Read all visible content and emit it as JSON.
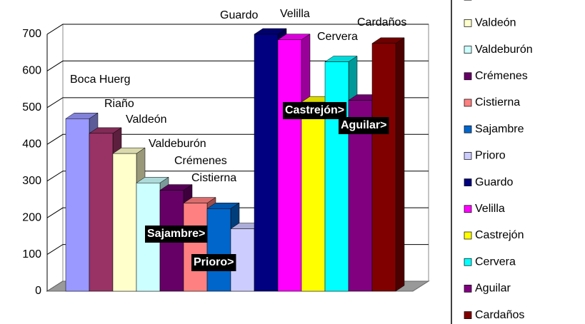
{
  "chart_data": {
    "type": "bar3d",
    "categories": [
      "Boca Huerg",
      "Riaño",
      "Valdeón",
      "Valdeburón",
      "Crémenes",
      "Cistierna",
      "Sajambre",
      "Prioro",
      "Guardo",
      "Velilla",
      "Castrejón",
      "Cervera",
      "Aguilar",
      "Cardaños"
    ],
    "values": [
      470,
      430,
      375,
      295,
      275,
      240,
      225,
      170,
      700,
      685,
      515,
      625,
      520,
      675
    ],
    "labels": [
      "Boca Huerg",
      "Riaño",
      "Valdeón",
      "Valdeburón",
      "Crémenes",
      "Cistierna",
      "Sajambre>",
      "Prioro>",
      "Guardo",
      "Velilla",
      "Castrejón>",
      "Cervera",
      "Aguilar>",
      "Cardaños"
    ],
    "label_boxed": [
      false,
      false,
      false,
      false,
      false,
      false,
      true,
      true,
      false,
      false,
      true,
      false,
      true,
      false
    ],
    "colors": [
      "#9999ff",
      "#993366",
      "#ffffcc",
      "#ccffff",
      "#660066",
      "#ff8080",
      "#0066cc",
      "#ccccff",
      "#000080",
      "#ff00ff",
      "#ffff00",
      "#00ffff",
      "#800080",
      "#800000"
    ],
    "ylim": [
      0,
      700
    ],
    "yticks": [
      0,
      100,
      200,
      300,
      400,
      500,
      600,
      700
    ],
    "grid": true
  }
}
